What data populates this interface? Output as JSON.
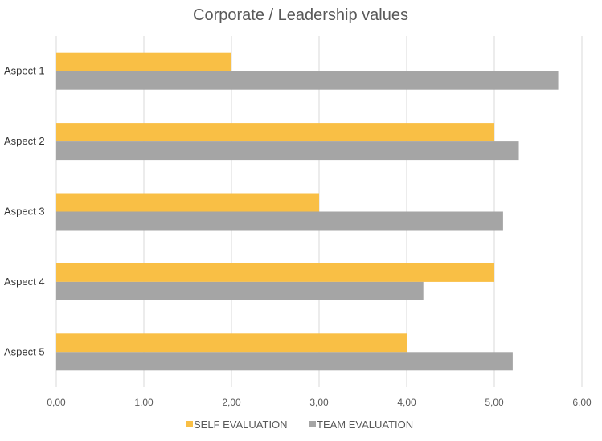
{
  "chart_data": {
    "type": "bar",
    "orientation": "horizontal",
    "title": "Corporate / Leadership values",
    "xlabel": "",
    "ylabel": "",
    "categories": [
      "Aspect 1",
      "Aspect 2",
      "Aspect 3",
      "Aspect 4",
      "Aspect 5"
    ],
    "series": [
      {
        "name": "SELF EVALUATION",
        "color": "#f9bf45",
        "values": [
          2.0,
          5.0,
          3.0,
          5.0,
          4.0
        ]
      },
      {
        "name": "TEAM EVALUATION",
        "color": "#a5a5a5",
        "values": [
          5.73,
          5.28,
          5.1,
          4.19,
          5.21
        ]
      }
    ],
    "xlim": [
      0,
      6
    ],
    "xticks": [
      0,
      1,
      2,
      3,
      4,
      5,
      6
    ],
    "xtick_labels": [
      "0,00",
      "1,00",
      "2,00",
      "3,00",
      "4,00",
      "5,00",
      "6,00"
    ],
    "grid": "vertical",
    "legend_position": "bottom"
  }
}
